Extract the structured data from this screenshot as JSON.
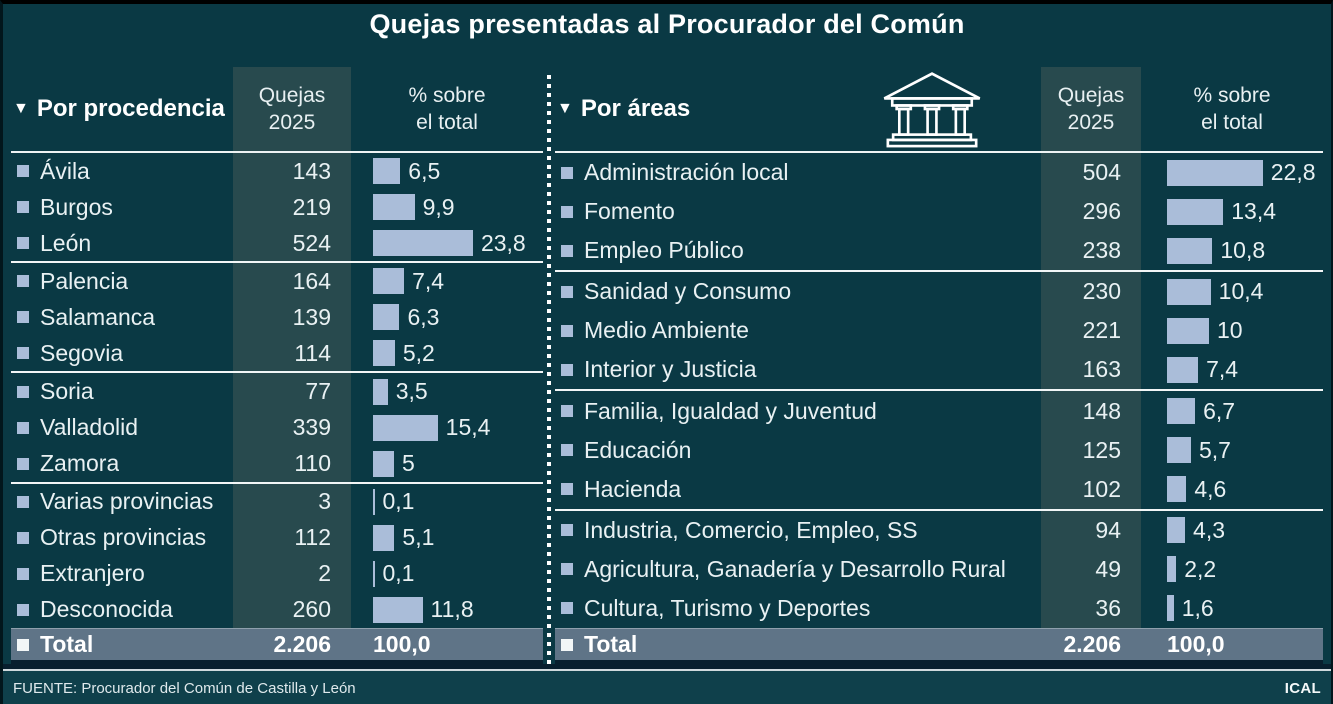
{
  "title": "Quejas presentadas al Procurador del Común",
  "source": "FUENTE: Procurador del Común de Castilla y León",
  "credit": "ICAL",
  "colors": {
    "background": "#0a3944",
    "column_band": "#284a4e",
    "bar": "#aabdd9",
    "total_row": "#5f7487",
    "separator": "#ffffff",
    "text": "#e9f1f3",
    "footer_background": "#0f404b"
  },
  "icons": {
    "building": "government-building-icon",
    "marker": "triangle-down-icon",
    "bullet": "square-bullet-icon"
  },
  "chart_data": [
    {
      "type": "table",
      "title": "Por procedencia",
      "marker": "▼",
      "columns": [
        "Quejas 2025",
        "% sobre el total"
      ],
      "bar_unit": "percent",
      "rows": [
        {
          "label": "Ávila",
          "quejas": "143",
          "pct": 6.5,
          "pct_label": "6,5"
        },
        {
          "label": "Burgos",
          "quejas": "219",
          "pct": 9.9,
          "pct_label": "9,9"
        },
        {
          "label": "León",
          "quejas": "524",
          "pct": 23.8,
          "pct_label": "23,8"
        },
        {
          "label": "Palencia",
          "quejas": "164",
          "pct": 7.4,
          "pct_label": "7,4"
        },
        {
          "label": "Salamanca",
          "quejas": "139",
          "pct": 6.3,
          "pct_label": "6,3"
        },
        {
          "label": "Segovia",
          "quejas": "114",
          "pct": 5.2,
          "pct_label": "5,2"
        },
        {
          "label": "Soria",
          "quejas": "77",
          "pct": 3.5,
          "pct_label": "3,5"
        },
        {
          "label": "Valladolid",
          "quejas": "339",
          "pct": 15.4,
          "pct_label": "15,4"
        },
        {
          "label": "Zamora",
          "quejas": "110",
          "pct": 5,
          "pct_label": "5"
        },
        {
          "label": "Varias provincias",
          "quejas": "3",
          "pct": 0.1,
          "pct_label": "0,1"
        },
        {
          "label": "Otras provincias",
          "quejas": "112",
          "pct": 5.1,
          "pct_label": "5,1"
        },
        {
          "label": "Extranjero",
          "quejas": "2",
          "pct": 0.1,
          "pct_label": "0,1"
        },
        {
          "label": "Desconocida",
          "quejas": "260",
          "pct": 11.8,
          "pct_label": "11,8"
        }
      ],
      "group_breaks_after": [
        2,
        5,
        8
      ],
      "total": {
        "label": "Total",
        "quejas": "2.206",
        "pct_label": "100,0"
      }
    },
    {
      "type": "table",
      "title": "Por áreas",
      "marker": "▼",
      "columns": [
        "Quejas 2025",
        "% sobre el total"
      ],
      "bar_unit": "percent",
      "rows": [
        {
          "label": "Administración local",
          "quejas": "504",
          "pct": 22.8,
          "pct_label": "22,8"
        },
        {
          "label": "Fomento",
          "quejas": "296",
          "pct": 13.4,
          "pct_label": "13,4"
        },
        {
          "label": "Empleo Público",
          "quejas": "238",
          "pct": 10.8,
          "pct_label": "10,8"
        },
        {
          "label": "Sanidad y Consumo",
          "quejas": "230",
          "pct": 10.4,
          "pct_label": "10,4"
        },
        {
          "label": "Medio Ambiente",
          "quejas": "221",
          "pct": 10,
          "pct_label": "10"
        },
        {
          "label": "Interior y Justicia",
          "quejas": "163",
          "pct": 7.4,
          "pct_label": "7,4"
        },
        {
          "label": "Familia, Igualdad y Juventud",
          "quejas": "148",
          "pct": 6.7,
          "pct_label": "6,7"
        },
        {
          "label": "Educación",
          "quejas": "125",
          "pct": 5.7,
          "pct_label": "5,7"
        },
        {
          "label": "Hacienda",
          "quejas": "102",
          "pct": 4.6,
          "pct_label": "4,6"
        },
        {
          "label": "Industria, Comercio, Empleo, SS",
          "quejas": "94",
          "pct": 4.3,
          "pct_label": "4,3"
        },
        {
          "label": "Agricultura, Ganadería y Desarrollo Rural",
          "quejas": "49",
          "pct": 2.2,
          "pct_label": "2,2"
        },
        {
          "label": "Cultura, Turismo y Deportes",
          "quejas": "36",
          "pct": 1.6,
          "pct_label": "1,6"
        }
      ],
      "group_breaks_after": [
        2,
        5,
        8
      ],
      "total": {
        "label": "Total",
        "quejas": "2.206",
        "pct_label": "100,0"
      }
    }
  ]
}
